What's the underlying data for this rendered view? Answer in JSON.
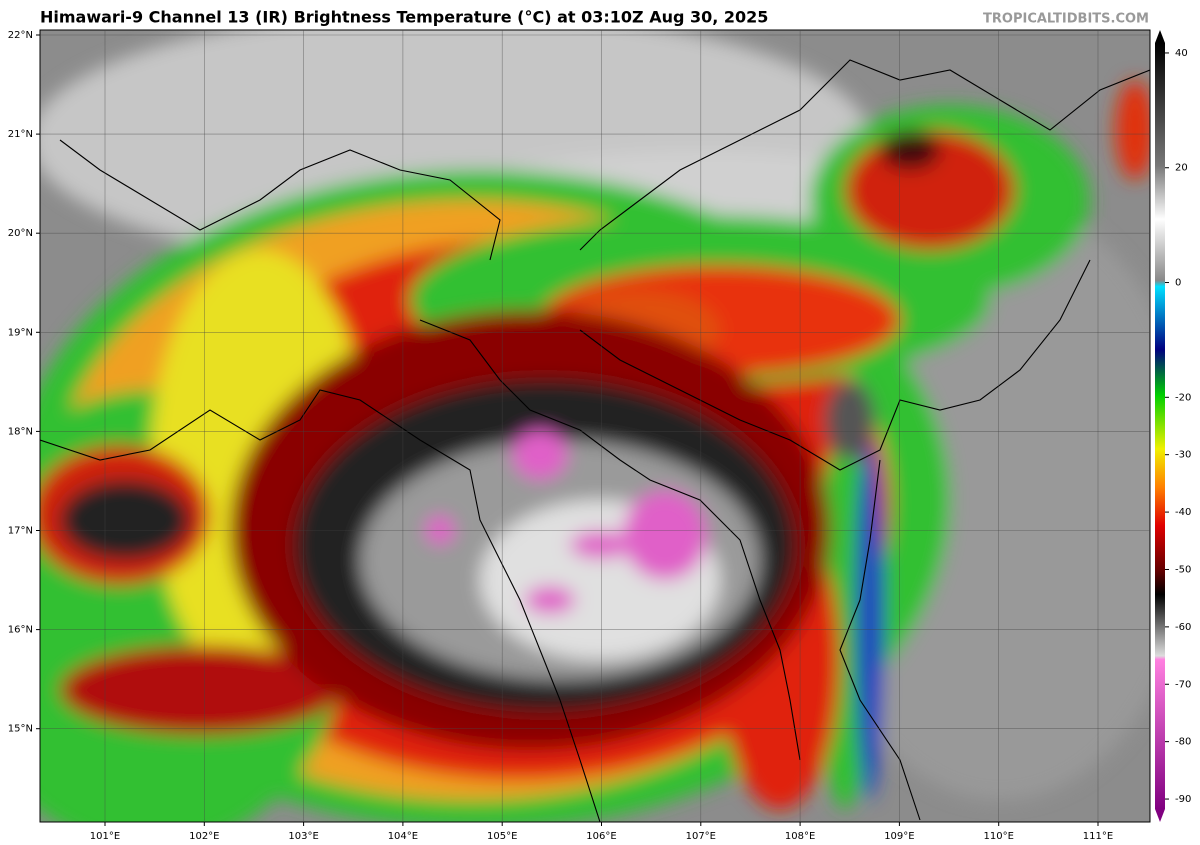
{
  "header": {
    "title": "Himawari-9 Channel 13 (IR) Brightness Temperature (°C) at 03:10Z Aug 30, 2025",
    "watermark": "TROPICALTIDBITS.COM"
  },
  "map": {
    "lat_labels": [
      "22°N",
      "21°N",
      "20°N",
      "19°N",
      "18°N",
      "17°N",
      "16°N",
      "15°N"
    ],
    "lon_labels": [
      "101°E",
      "102°E",
      "103°E",
      "104°E",
      "105°E",
      "106°E",
      "107°E",
      "108°E",
      "109°E",
      "110°E",
      "111°E"
    ]
  },
  "colorbar": {
    "lim": [
      -94,
      44
    ],
    "ticks": [
      40,
      20,
      0,
      -20,
      -30,
      -40,
      -50,
      -60,
      -70,
      -80,
      -90
    ]
  }
}
